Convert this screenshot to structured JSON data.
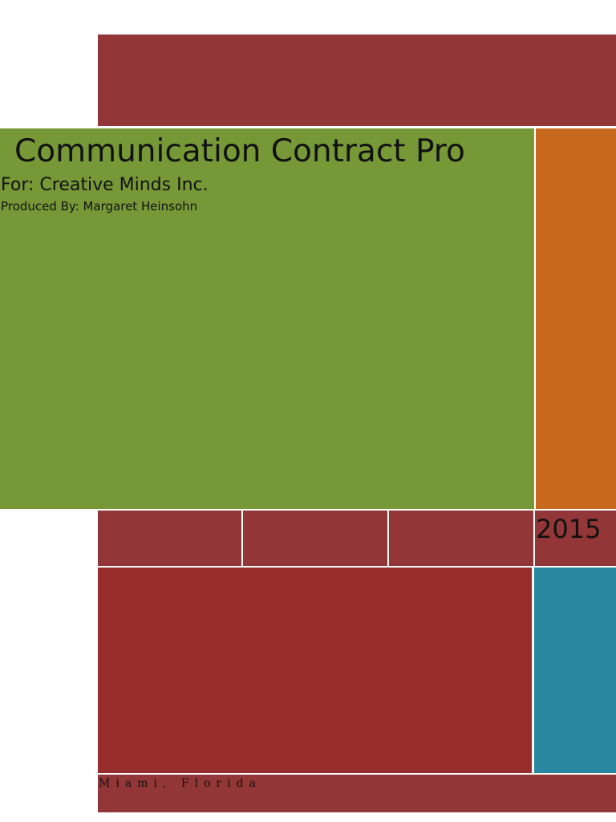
{
  "document": {
    "title": "Communication Contract Pro",
    "subtitle": "For: Creative Minds Inc.",
    "producer": "Produced By: Margaret Heinsohn",
    "year": "2015",
    "location": "Miami, Florida"
  },
  "colors": {
    "maroon": "#933637",
    "dark_red": "#992d2c",
    "olive_green": "#779836",
    "orange": "#c8681e",
    "teal": "#29879f"
  }
}
